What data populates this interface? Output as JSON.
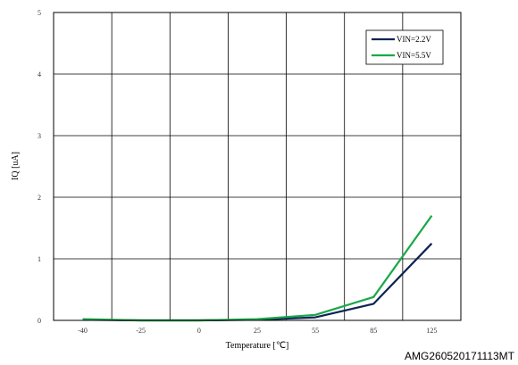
{
  "chart_data": {
    "type": "line",
    "xlabel": "Temperature [℃]",
    "ylabel": "IQ [uA]",
    "categories": [
      "-40",
      "-25",
      "0",
      "25",
      "55",
      "85",
      "125"
    ],
    "yticks": [
      "0",
      "1",
      "2",
      "3",
      "4",
      "5"
    ],
    "ylim": [
      0,
      5
    ],
    "grid": true,
    "legend_position": "top-right",
    "series": [
      {
        "name": "VIN=2.2V",
        "color": "#0d2352",
        "values": [
          0.01,
          0.0,
          0.0,
          0.01,
          0.05,
          0.27,
          1.25
        ]
      },
      {
        "name": "VIN=5.5V",
        "color": "#1aa84a",
        "values": [
          0.02,
          0.0,
          0.0,
          0.02,
          0.09,
          0.38,
          1.7
        ]
      }
    ]
  },
  "reference_code": "AMG260520171113MT"
}
